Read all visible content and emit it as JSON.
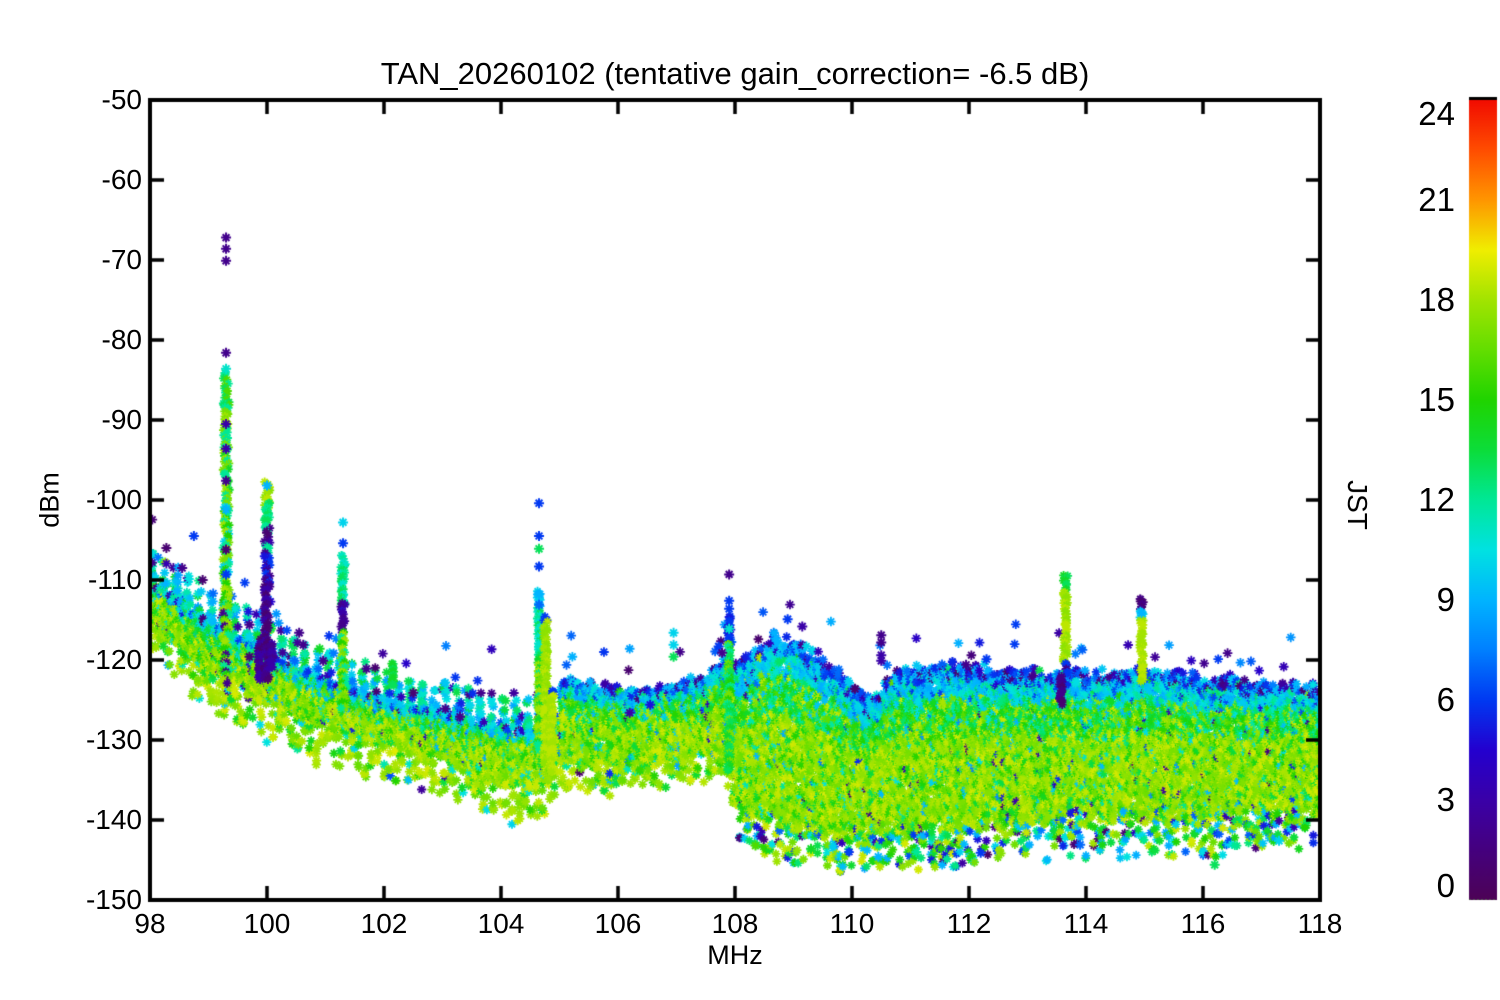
{
  "chart_data": {
    "type": "scatter",
    "title": "TAN_20260102 (tentative gain_correction= -6.5 dB)",
    "xlabel": "MHz",
    "ylabel": "dBm",
    "colorbar_label": "JST",
    "xlim": [
      98,
      118
    ],
    "ylim": [
      -150,
      -50
    ],
    "x_ticks": [
      98,
      100,
      102,
      104,
      106,
      108,
      110,
      112,
      114,
      116,
      118
    ],
    "y_ticks": [
      -50,
      -60,
      -70,
      -80,
      -90,
      -100,
      -110,
      -120,
      -130,
      -140,
      -150
    ],
    "marker": "asterisk-star",
    "colorbar": {
      "range": [
        0,
        24
      ],
      "ticks": [
        0,
        3,
        6,
        9,
        12,
        15,
        18,
        21,
        24
      ],
      "colormap": [
        [
          0,
          "#4d0356"
        ],
        [
          2,
          "#42008c"
        ],
        [
          3,
          "#3a00a8"
        ],
        [
          4.5,
          "#2400cf"
        ],
        [
          6,
          "#0039f2"
        ],
        [
          7.5,
          "#0080ff"
        ],
        [
          9,
          "#00b4ff"
        ],
        [
          10.5,
          "#00e2e2"
        ],
        [
          12,
          "#00e896"
        ],
        [
          13.5,
          "#0cdd3a"
        ],
        [
          15,
          "#20d400"
        ],
        [
          16.5,
          "#63de00"
        ],
        [
          18,
          "#a2e400"
        ],
        [
          19.5,
          "#f0ee00"
        ],
        [
          21,
          "#ff9600"
        ],
        [
          22.5,
          "#ff4d00"
        ],
        [
          24,
          "#f20c00"
        ]
      ]
    },
    "band_envelope": [
      [
        98.0,
        -105.5,
        -120.5
      ],
      [
        98.4,
        -107.5,
        -123
      ],
      [
        99.0,
        -110.5,
        -126.5
      ],
      [
        99.5,
        -112.5,
        -128.5
      ],
      [
        100.0,
        -114.5,
        -130.5
      ],
      [
        100.5,
        -116.5,
        -132
      ],
      [
        101.0,
        -118,
        -133.5
      ],
      [
        101.5,
        -119.5,
        -134.5
      ],
      [
        102.0,
        -120.5,
        -135.5
      ],
      [
        102.5,
        -121.5,
        -136.5
      ],
      [
        103.0,
        -122,
        -137.5
      ],
      [
        103.5,
        -123,
        -139
      ],
      [
        104.0,
        -123.8,
        -140.5
      ],
      [
        104.4,
        -124.3,
        -141
      ],
      [
        104.9,
        -124,
        -139.5
      ],
      [
        105.0,
        -121.8,
        -136.5
      ],
      [
        105.5,
        -122.5,
        -137
      ],
      [
        106.0,
        -123.2,
        -137.2
      ],
      [
        106.5,
        -123.3,
        -136.8
      ],
      [
        107.0,
        -122.8,
        -136.3
      ],
      [
        107.5,
        -121.3,
        -135.8
      ],
      [
        107.8,
        -119.6,
        -135.5
      ],
      [
        108.0,
        -120.3,
        -138.5
      ],
      [
        108.3,
        -118.3,
        -141
      ],
      [
        108.65,
        -116.4,
        -141.5
      ],
      [
        109.0,
        -116.8,
        -142
      ],
      [
        109.5,
        -119.3,
        -142.5
      ],
      [
        110.0,
        -122.3,
        -142.8
      ],
      [
        110.3,
        -124.3,
        -142.8
      ],
      [
        110.7,
        -121.3,
        -142.5
      ],
      [
        111.0,
        -120.6,
        -142
      ],
      [
        111.5,
        -119.9,
        -141.8
      ],
      [
        112.0,
        -120.3,
        -142
      ],
      [
        112.5,
        -120.8,
        -141.5
      ],
      [
        113.0,
        -120.8,
        -141
      ],
      [
        113.5,
        -120.9,
        -140.8
      ],
      [
        114.0,
        -121.3,
        -140.8
      ],
      [
        114.5,
        -120.9,
        -140.5
      ],
      [
        115.0,
        -120.8,
        -140.5
      ],
      [
        115.5,
        -121.3,
        -140.5
      ],
      [
        116.0,
        -121.8,
        -140.8
      ],
      [
        116.5,
        -121.8,
        -140.3
      ],
      [
        117.0,
        -122.3,
        -140.3
      ],
      [
        117.5,
        -122.4,
        -140
      ],
      [
        118.0,
        -122.8,
        -139.5
      ]
    ],
    "comb": {
      "top_period_mhz": 0.2,
      "top_depth_db": 4.5,
      "bottom_period_mhz": 0.105,
      "bottom_depth_db": 5.5,
      "left_limit_mhz": 105,
      "mid_limit_mhz": 108,
      "mid_bottom_depth_db": 4
    },
    "peaks": [
      {
        "f": 99.3,
        "w": 0.11,
        "parts": [
          [
            -84,
            -88.5,
            [
              12,
              13,
              16
            ]
          ],
          [
            -88.5,
            -101,
            [
              17,
              18,
              14,
              12
            ]
          ],
          [
            -101,
            -112,
            [
              17,
              18,
              15,
              12,
              10
            ]
          ],
          [
            -112,
            -123,
            [
              17,
              18,
              15,
              12,
              2
            ]
          ]
        ],
        "dots": [
          [
            -67.2,
            2
          ],
          [
            -68.6,
            2
          ],
          [
            -70.1,
            2
          ],
          [
            -81.6,
            2
          ],
          [
            -83.6,
            11
          ],
          [
            -90.5,
            3
          ],
          [
            -93.6,
            3
          ],
          [
            -97.6,
            2
          ],
          [
            -101.2,
            9
          ],
          [
            -106.2,
            1
          ],
          [
            -109.3,
            6
          ]
        ]
      },
      {
        "f": 99.7,
        "w": 0.03,
        "parts": [],
        "dots": [
          [
            -115.6,
            2
          ],
          [
            -117.1,
            10
          ],
          [
            -119.6,
            1
          ]
        ]
      },
      {
        "f": 99.87,
        "w": 0.05,
        "parts": [
          [
            -117.5,
            -122.5,
            [
              2,
              1,
              3
            ]
          ]
        ],
        "dots": []
      },
      {
        "f": 100.0,
        "w": 0.1,
        "parts": [
          [
            -97.8,
            -101,
            [
              18,
              18.5,
              17.5
            ]
          ],
          [
            -100.5,
            -103.5,
            [
              12,
              13
            ]
          ],
          [
            -103.5,
            -107,
            [
              2,
              12,
              3
            ]
          ],
          [
            -107,
            -110.5,
            [
              6,
              5,
              2
            ]
          ],
          [
            -110.5,
            -122.5,
            [
              2,
              1,
              3
            ]
          ]
        ],
        "dots": [
          [
            -98.2,
            9
          ],
          [
            -104.1,
            1
          ]
        ]
      },
      {
        "f": 100.08,
        "w": 0.04,
        "parts": [
          [
            -118,
            -121,
            [
              2,
              3
            ]
          ]
        ],
        "dots": []
      },
      {
        "f": 101.3,
        "w": 0.08,
        "parts": [
          [
            -107,
            -113,
            [
              12,
              11,
              13
            ]
          ],
          [
            -113,
            -116.5,
            [
              2,
              3,
              6
            ]
          ],
          [
            -116.5,
            -126,
            [
              15,
              17,
              12,
              18
            ]
          ]
        ],
        "dots": [
          [
            -102.8,
            10
          ],
          [
            -105.4,
            6
          ]
        ]
      },
      {
        "f": 102.15,
        "w": 0.04,
        "parts": [
          [
            -120.5,
            -123.5,
            [
              13,
              14
            ]
          ]
        ],
        "dots": []
      },
      {
        "f": 104.65,
        "w": 0.06,
        "parts": [
          [
            -111.5,
            -113.5,
            [
              10,
              9
            ]
          ],
          [
            -113.5,
            -120,
            [
              12,
              13,
              11
            ]
          ],
          [
            -120,
            -131.5,
            [
              14,
              17,
              12,
              18
            ]
          ]
        ],
        "dots": [
          [
            -100.4,
            6
          ],
          [
            -104.5,
            6
          ],
          [
            -106.1,
            13
          ],
          [
            -108.3,
            6
          ],
          [
            -111.8,
            9
          ],
          [
            -113.1,
            7
          ]
        ]
      },
      {
        "f": 104.76,
        "w": 0.07,
        "parts": [
          [
            -114.7,
            -115.3,
            [
              6
            ]
          ],
          [
            -115.3,
            -133,
            [
              18,
              18.5,
              17.5
            ]
          ]
        ],
        "dots": []
      },
      {
        "f": 104.87,
        "w": 0.06,
        "parts": [
          [
            -123.9,
            -124.5,
            [
              6
            ]
          ],
          [
            -124.5,
            -134,
            [
              18,
              18.5
            ]
          ]
        ],
        "dots": []
      },
      {
        "f": 106.95,
        "w": 0.04,
        "parts": [],
        "dots": [
          [
            -116.6,
            10
          ],
          [
            -118.1,
            10
          ],
          [
            -119.6,
            13
          ]
        ]
      },
      {
        "f": 107.9,
        "w": 0.07,
        "parts": [
          [
            -114.5,
            -118,
            [
              6,
              5
            ]
          ],
          [
            -118,
            -134,
            [
              13,
              14,
              12,
              15,
              17
            ]
          ]
        ],
        "dots": [
          [
            -109.3,
            2
          ],
          [
            -112.6,
            6
          ],
          [
            -113.6,
            6
          ],
          [
            -116.1,
            11
          ]
        ]
      },
      {
        "f": 110.5,
        "w": 0.05,
        "parts": [],
        "dots": [
          [
            -116.9,
            2
          ],
          [
            -117.8,
            2
          ],
          [
            -119.4,
            3
          ],
          [
            -120.1,
            3
          ]
        ]
      },
      {
        "f": 113.65,
        "w": 0.075,
        "parts": [
          [
            -109.5,
            -111.5,
            [
              13,
              14
            ]
          ],
          [
            -111.5,
            -120.5,
            [
              18,
              18.5,
              17.5
            ]
          ],
          [
            -120.5,
            -121.8,
            [
              6,
              2
            ]
          ]
        ],
        "dots": []
      },
      {
        "f": 113.57,
        "w": 0.05,
        "parts": [
          [
            -122,
            -125.5,
            [
              2,
              1
            ]
          ]
        ],
        "dots": []
      },
      {
        "f": 114.95,
        "w": 0.06,
        "parts": [
          [
            -112.3,
            -114,
            [
              1,
              2
            ]
          ],
          [
            -114,
            -115,
            [
              10
            ]
          ],
          [
            -115,
            -123,
            [
              18,
              18.5
            ]
          ]
        ],
        "dots": [
          [
            -114.1,
            9
          ]
        ]
      }
    ],
    "outliers": [
      [
        98.28,
        -106.0,
        1
      ],
      [
        98.55,
        -108.5,
        2
      ],
      [
        98.75,
        -104.5,
        6
      ],
      [
        98.9,
        -110,
        1
      ],
      [
        100.55,
        -116.6,
        2
      ],
      [
        100.62,
        -118.1,
        2
      ],
      [
        100.9,
        -118.6,
        14
      ],
      [
        100.96,
        -120.1,
        2
      ],
      [
        101.7,
        -121.1,
        2
      ],
      [
        102.5,
        -124.1,
        1
      ],
      [
        103.05,
        -126.1,
        2
      ],
      [
        103.3,
        -127.1,
        2
      ],
      [
        106.2,
        -126.6,
        3
      ],
      [
        106.55,
        -125.6,
        5
      ],
      [
        107.72,
        -118.3,
        6
      ],
      [
        107.78,
        -119.1,
        2
      ],
      [
        108.9,
        -114.9,
        6
      ],
      [
        109.15,
        -115.8,
        3
      ],
      [
        110.05,
        -123.6,
        1
      ],
      [
        111.95,
        -120.6,
        2
      ],
      [
        112.3,
        -119.9,
        6
      ],
      [
        110.45,
        -144.6,
        9
      ],
      [
        112.2,
        -144.1,
        6
      ],
      [
        116.2,
        -145.6,
        13
      ],
      [
        109.3,
        -143.6,
        14
      ],
      [
        113.9,
        -143.1,
        7
      ],
      [
        117.3,
        -142.6,
        10
      ],
      [
        108.35,
        -143.2,
        16
      ],
      [
        111.1,
        -144.0,
        12
      ]
    ],
    "below_floor_scatter": {
      "from_mhz": 108,
      "to_mhz": 118,
      "max_depth_db": 4.5
    },
    "axis_color": "#000000",
    "background_color": "#ffffff"
  }
}
